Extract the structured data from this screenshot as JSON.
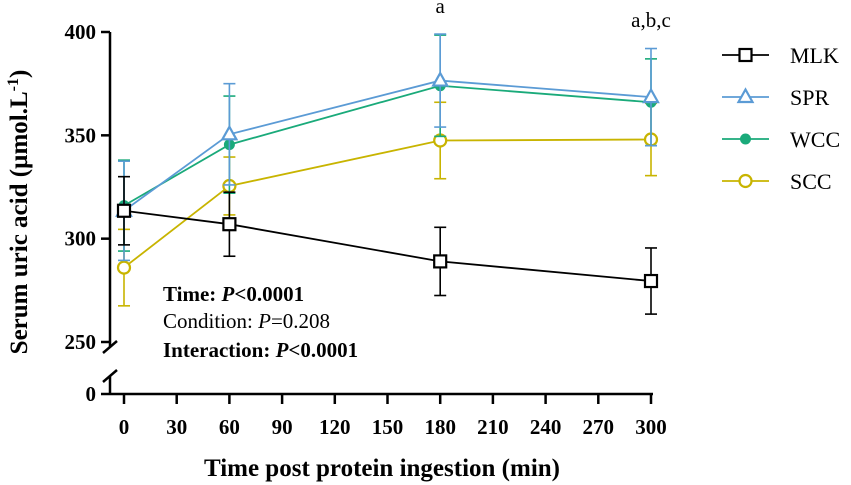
{
  "chart_data": {
    "type": "line",
    "title": "",
    "xlabel": "Time post protein ingestion (min)",
    "ylabel_main": "Serum uric acid (µmol.L",
    "ylabel_sup": "-1",
    "ylabel_close": ")",
    "x_ticks": [
      "0",
      "30",
      "60",
      "90",
      "120",
      "150",
      "180",
      "210",
      "240",
      "270",
      "300"
    ],
    "xlim": [
      0,
      300
    ],
    "y_ticks_upper": [
      "250",
      "300",
      "350",
      "400"
    ],
    "y_tick_values_upper": [
      250,
      300,
      350,
      400
    ],
    "y_ticks_lower": [
      "0"
    ],
    "ylim": [
      250,
      400
    ],
    "y_axis_break": true,
    "grid": false,
    "legend_position": "right",
    "series": [
      {
        "name": "MLK",
        "color": "#000000",
        "marker": "open-square",
        "x": [
          0,
          60,
          180,
          300
        ],
        "values": [
          313.5,
          307,
          289,
          279.5
        ],
        "errors": [
          16.5,
          15.5,
          16.5,
          16
        ]
      },
      {
        "name": "SPR",
        "color": "#5b9bd5",
        "marker": "open-triangle",
        "x": [
          0,
          60,
          180,
          300
        ],
        "values": [
          313.5,
          350.5,
          376.5,
          368.5
        ],
        "errors": [
          24,
          24.5,
          22.5,
          23.5
        ]
      },
      {
        "name": "WCC",
        "color": "#1aaa7a",
        "marker": "filled-circle",
        "x": [
          0,
          60,
          180,
          300
        ],
        "values": [
          316,
          345.5,
          374,
          366
        ],
        "errors": [
          22,
          23.5,
          24.5,
          21
        ]
      },
      {
        "name": "SCC",
        "color": "#c8b400",
        "marker": "open-circle",
        "x": [
          0,
          60,
          180,
          300
        ],
        "values": [
          286,
          325.5,
          347.5,
          348
        ],
        "errors": [
          18.5,
          14,
          18.5,
          17.5
        ]
      }
    ],
    "annotations": [
      {
        "x": 180,
        "text": "a"
      },
      {
        "x": 300,
        "text": "a,b,c"
      }
    ],
    "stats": {
      "line1_label": "Time: ",
      "line1_p": "P",
      "line1_value": "<0.0001",
      "line2_label": "Condition: ",
      "line2_p": "P",
      "line2_value": "=0.208",
      "line3_label": "Interaction: ",
      "line3_p": "P",
      "line3_value": "<0.0001"
    }
  }
}
